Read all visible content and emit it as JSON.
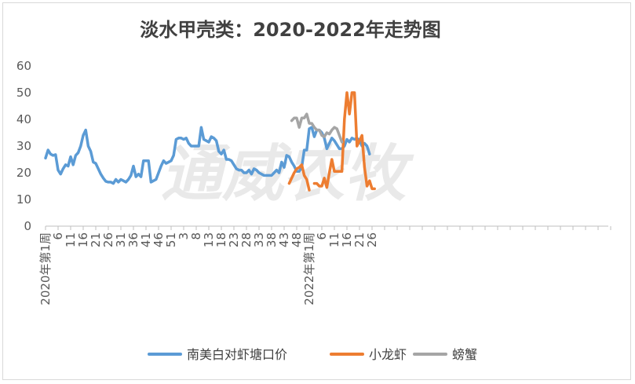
{
  "chart_data": {
    "type": "line",
    "title": "淡水甲壳类：2020-2022年走势图",
    "watermark": "通威农牧",
    "ylim": [
      0,
      60
    ],
    "yticks": [
      0,
      10,
      20,
      30,
      40,
      50,
      60
    ],
    "x_tick_labels": [
      "2020年第1周",
      "6",
      "11",
      "16",
      "21",
      "26",
      "31",
      "36",
      "41",
      "46",
      "51",
      "3",
      "8",
      "13",
      "18",
      "23",
      "28",
      "33",
      "38",
      "43",
      "48",
      "2022年第1周",
      "6",
      "11",
      "16",
      "21",
      "26"
    ],
    "grid": false,
    "legend_position": "bottom",
    "series": [
      {
        "name": "南美白对虾塘口价",
        "color": "#5b9bd5",
        "start": 0,
        "values": [
          25.5,
          28.5,
          27,
          26.5,
          26.8,
          21,
          19.5,
          21.5,
          23,
          22.5,
          26,
          23,
          26.5,
          27.5,
          30,
          34,
          36,
          30,
          28,
          24,
          23.5,
          21.5,
          19.5,
          18,
          16.8,
          16.5,
          16.5,
          16,
          17.5,
          16.5,
          17.5,
          17,
          16.5,
          17.5,
          19,
          22.5,
          18.5,
          19.5,
          18.5,
          24.5,
          24.5,
          24.5,
          16.5,
          17,
          17.5,
          20,
          22.5,
          24.5,
          23.5,
          24,
          24.5,
          26.5,
          32.5,
          33,
          33,
          32.5,
          33,
          31,
          30,
          30,
          30,
          30,
          37,
          32.5,
          32,
          31.5,
          33.5,
          33,
          32,
          28,
          27,
          28.5,
          25,
          25,
          24.5,
          23,
          21.5,
          21,
          21,
          20,
          20,
          21,
          19.5,
          21.5,
          21,
          20,
          19.5,
          19,
          19,
          19,
          19,
          20,
          21,
          20,
          24,
          22,
          26.5,
          26,
          24,
          22.5,
          20.5,
          20.5,
          22,
          28.5,
          28.5,
          36.5,
          37,
          33.5,
          36,
          36,
          35,
          33,
          29,
          31,
          33,
          32,
          30.5,
          29,
          29,
          30,
          32.5,
          31.5,
          33,
          32.5,
          33,
          32,
          30,
          31,
          30,
          27
        ]
      },
      {
        "name": "小龙虾",
        "color": "#ed7d31",
        "segments": [
          {
            "start": 97,
            "values": [
              16,
              18,
              20,
              21.5,
              22,
              23,
              19,
              17.5,
              13.5
            ]
          },
          {
            "start": 107,
            "values": [
              16,
              16,
              15,
              15,
              18,
              14.5,
              20,
              25,
              20.5,
              20.5,
              20.5,
              20.5,
              40,
              50,
              42,
              50,
              50,
              30,
              32,
              34,
              22,
              15,
              17,
              14,
              14
            ]
          }
        ]
      },
      {
        "name": "螃蟹",
        "color": "#a5a5a5",
        "segments": [
          {
            "start": 98,
            "values": [
              39.5,
              40.5,
              40.5,
              37,
              40.5,
              40.5,
              42,
              38.5,
              38.5,
              37,
              36,
              36,
              34,
              33.5,
              35,
              34.5,
              36,
              37,
              36.5,
              34,
              31.5
            ]
          }
        ]
      }
    ]
  }
}
